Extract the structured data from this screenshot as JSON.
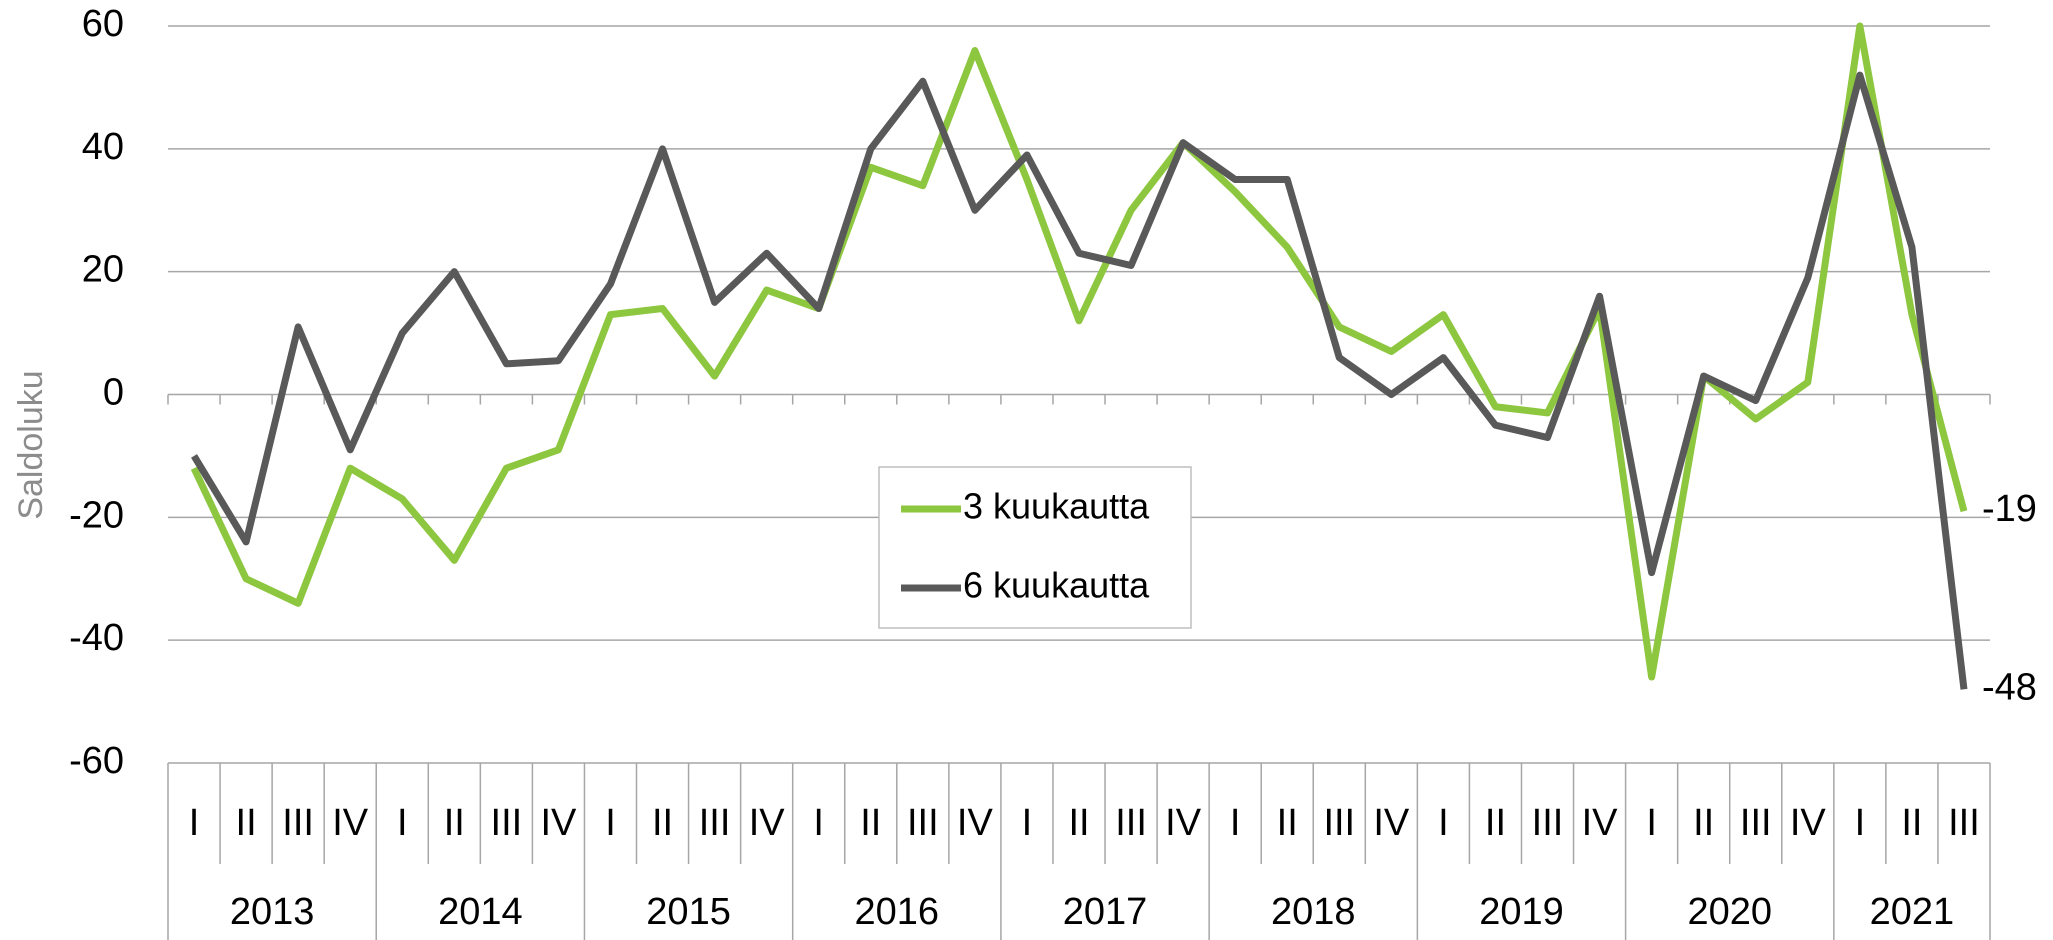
{
  "chart_data": {
    "type": "line",
    "y_label": "Saldoluku",
    "categories": [
      "I",
      "II",
      "III",
      "IV",
      "I",
      "II",
      "III",
      "IV",
      "I",
      "II",
      "III",
      "IV",
      "I",
      "II",
      "III",
      "IV",
      "I",
      "II",
      "III",
      "IV",
      "I",
      "II",
      "III",
      "IV",
      "I",
      "II",
      "III",
      "IV",
      "I",
      "II",
      "III",
      "IV",
      "I",
      "II",
      "III"
    ],
    "years": [
      "2013",
      "2014",
      "2015",
      "2016",
      "2017",
      "2018",
      "2019",
      "2020",
      "2021"
    ],
    "series": [
      {
        "name": "3 kuukautta",
        "color": "#8dc63f",
        "end_label": true,
        "values": [
          -12,
          -30,
          -34,
          -12,
          -17,
          -27,
          -12,
          -9,
          13,
          14,
          3,
          17,
          14,
          37,
          34,
          56,
          35,
          12,
          30,
          41,
          33,
          24,
          11,
          7,
          13,
          -2,
          -3,
          14,
          -46,
          3,
          -4,
          2,
          60,
          13,
          -19
        ]
      },
      {
        "name": "6 kuukautta",
        "color": "#595959",
        "end_label": true,
        "values": [
          -10,
          -24,
          11,
          -9,
          10,
          20,
          5,
          5.5,
          18,
          40,
          15,
          23,
          14,
          40,
          51,
          30,
          39,
          23,
          21,
          41,
          35,
          35,
          6,
          0,
          6,
          -5,
          -7,
          16,
          -29,
          3,
          -1,
          19,
          52,
          24,
          -48
        ]
      }
    ],
    "ylim": [
      -60,
      60
    ],
    "yticks": [
      -60,
      -40,
      -20,
      0,
      20,
      40,
      60
    ],
    "grid": true,
    "legend": "center"
  }
}
